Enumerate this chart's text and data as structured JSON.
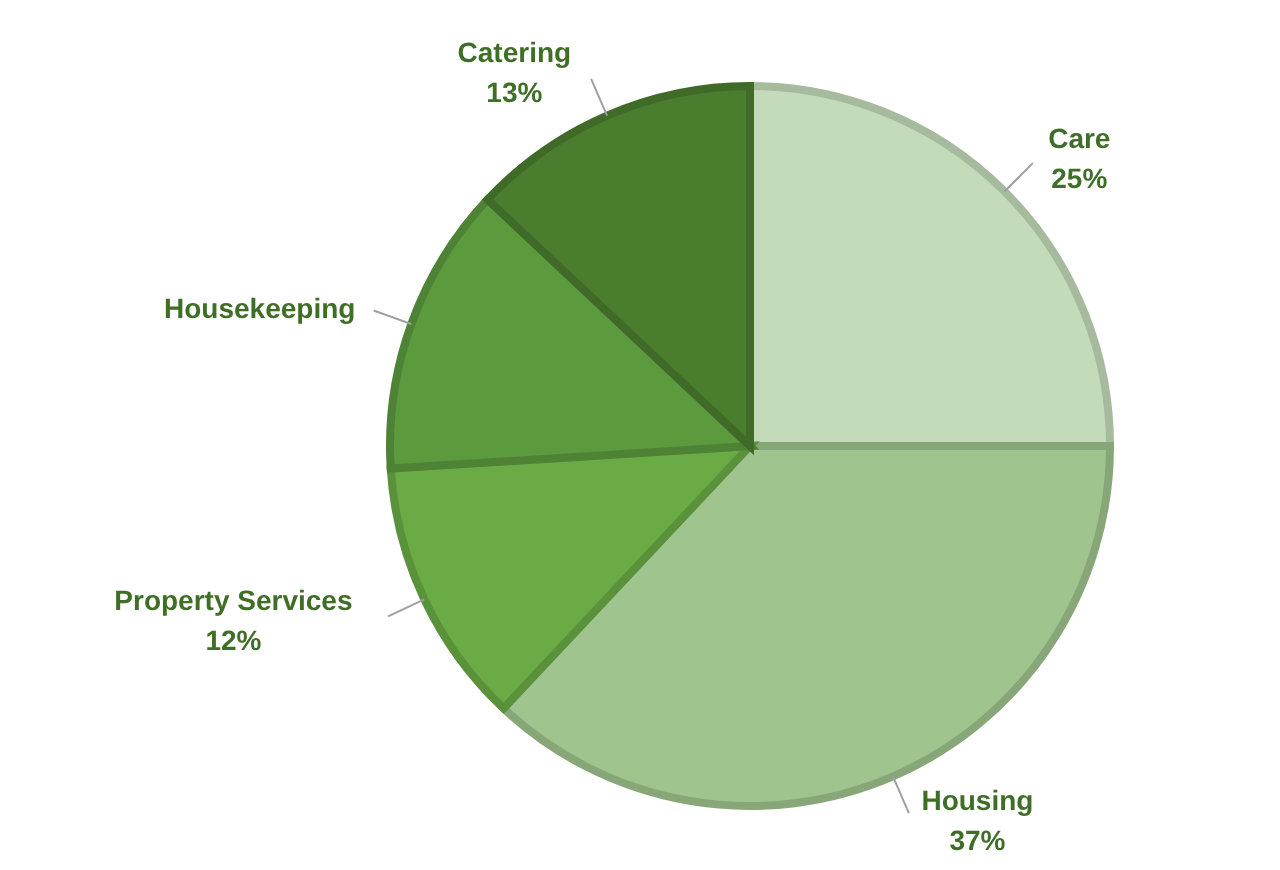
{
  "chart_data": {
    "type": "pie",
    "categories": [
      "Care",
      "Housing",
      "Property Services",
      "Housekeeping",
      "Catering"
    ],
    "values": [
      25,
      37,
      12,
      13,
      13
    ],
    "value_labels": [
      "25%",
      "37%",
      "12%",
      null,
      "13%"
    ],
    "colors": [
      "#c3dbb9",
      "#a0c48e",
      "#6aab45",
      "#5c9a3e",
      "#4a7d2e"
    ]
  }
}
